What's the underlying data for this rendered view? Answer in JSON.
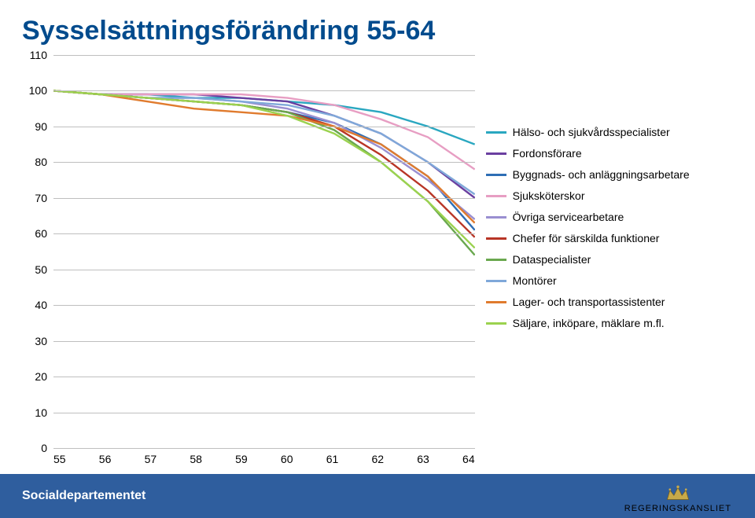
{
  "title": "Sysselsättningsförändring 55-64",
  "footer": {
    "department": "Socialdepartementet",
    "agency": "REGERINGSKANSLIET"
  },
  "chart": {
    "type": "line",
    "ylim": [
      0,
      110
    ],
    "ytick_step": 10,
    "xvalues": [
      55,
      56,
      57,
      58,
      59,
      60,
      61,
      62,
      63,
      64
    ],
    "grid_color": "#bfbfbf",
    "background_color": "#ffffff",
    "line_width": 2.4,
    "title_fontsize": 34,
    "label_fontsize": 14,
    "series": [
      {
        "label": "Hälso- och sjukvårdsspecialister",
        "color": "#2aa7c0",
        "values": [
          100,
          99,
          99,
          98,
          98,
          97,
          96,
          94,
          90,
          85
        ]
      },
      {
        "label": "Fordonsförare",
        "color": "#6a3fa0",
        "values": [
          100,
          99,
          99,
          99,
          98,
          97,
          93,
          88,
          80,
          70
        ]
      },
      {
        "label": "Byggnads- och anläggningsarbetare",
        "color": "#2e6eb5",
        "values": [
          100,
          99,
          98,
          97,
          96,
          94,
          91,
          85,
          76,
          61
        ]
      },
      {
        "label": "Sjuksköterskor",
        "color": "#e79ec3",
        "values": [
          100,
          99,
          99,
          99,
          99,
          98,
          96,
          92,
          87,
          78
        ]
      },
      {
        "label": "Övriga servicearbetare",
        "color": "#9a8fd1",
        "values": [
          100,
          99,
          98,
          98,
          97,
          95,
          91,
          84,
          75,
          64
        ]
      },
      {
        "label": "Chefer för särskilda funktioner",
        "color": "#b83526",
        "values": [
          100,
          99,
          98,
          97,
          96,
          94,
          90,
          82,
          72,
          59
        ]
      },
      {
        "label": "Dataspecialister",
        "color": "#6aa84f",
        "values": [
          100,
          99,
          98,
          97,
          96,
          94,
          89,
          80,
          69,
          54
        ]
      },
      {
        "label": "Montörer",
        "color": "#7fa8d9",
        "values": [
          100,
          99,
          98,
          98,
          97,
          96,
          93,
          88,
          80,
          71
        ]
      },
      {
        "label": "Lager- och transportassistenter",
        "color": "#e07b2e",
        "values": [
          100,
          99,
          97,
          95,
          94,
          93,
          90,
          85,
          76,
          63
        ]
      },
      {
        "label": "Säljare, inköpare, mäklare m.fl.",
        "color": "#9bd24f",
        "values": [
          100,
          99,
          98,
          97,
          96,
          93,
          88,
          80,
          69,
          56
        ]
      }
    ]
  }
}
